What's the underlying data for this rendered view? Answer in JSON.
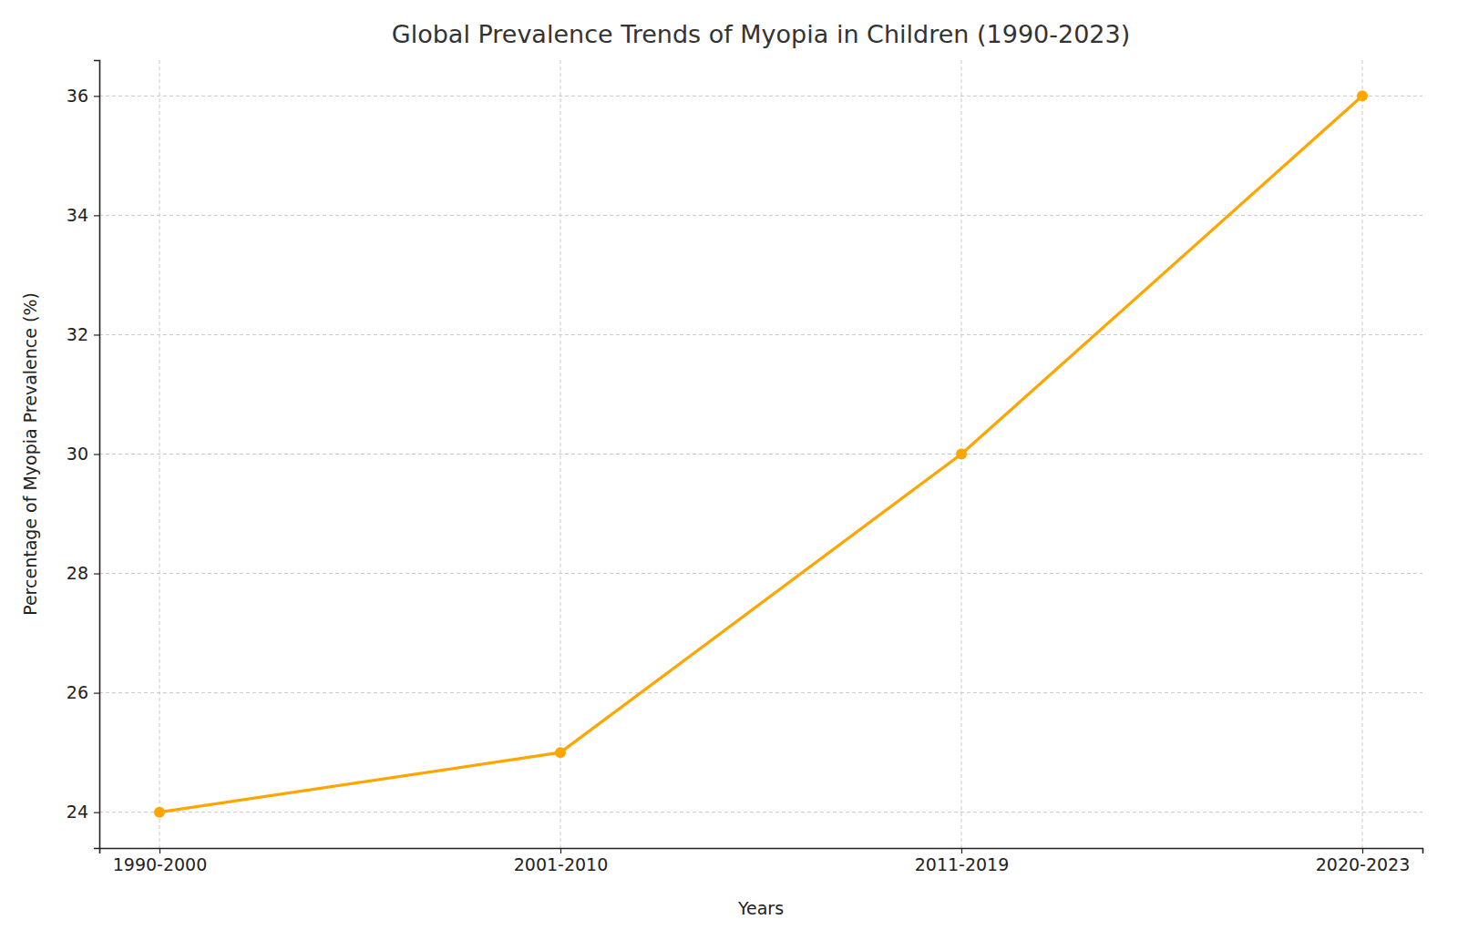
{
  "chart_data": {
    "type": "line",
    "title": "Global Prevalence Trends of Myopia in Children (1990-2023)",
    "x_label": "Years",
    "y_label": "Percentage of Myopia Prevalence (%)",
    "categories": [
      "1990-2000",
      "2001-2010",
      "2011-2019",
      "2020-2023"
    ],
    "values": [
      24,
      25,
      30,
      36
    ],
    "color": "#ffa500",
    "marker": "circle",
    "ylim": [
      23.4,
      36.6
    ],
    "yticks": [
      24,
      26,
      28,
      30,
      32,
      34,
      36
    ],
    "grid": true
  }
}
